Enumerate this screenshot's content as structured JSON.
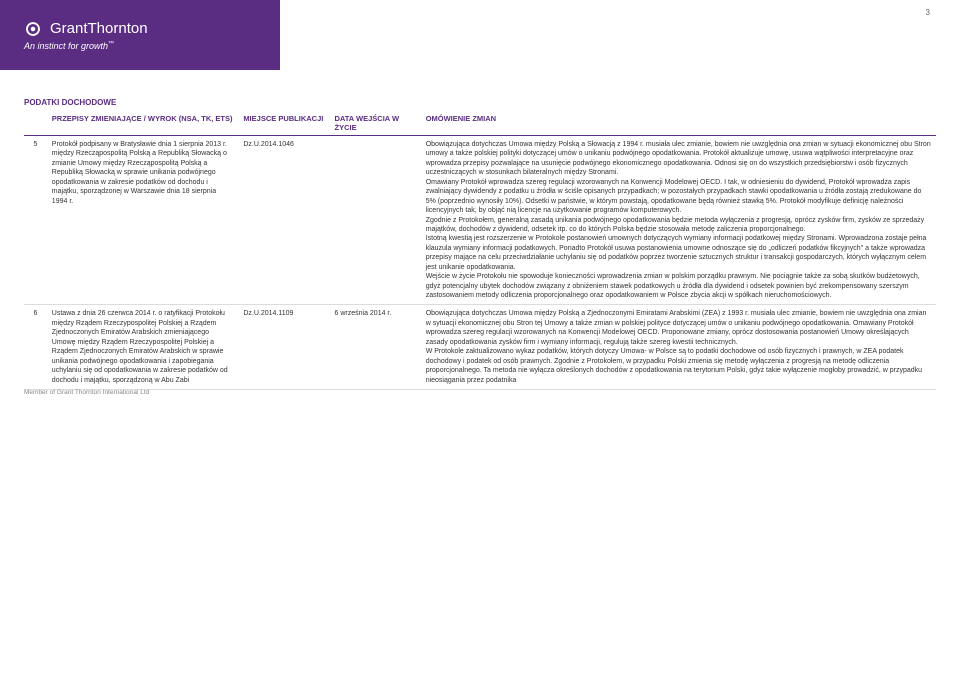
{
  "page_number": "3",
  "brand": {
    "name": "GrantThornton",
    "tagline": "An instinct for growth",
    "bg_color": "#5a2d82",
    "text_color": "#ffffff"
  },
  "section_title": "PODATKI DOCHODOWE",
  "table": {
    "headers": {
      "num": "",
      "przepisy": "PRZEPISY ZMIENIAJĄCE / WYROK (NSA, TK, ETS)",
      "miejsce": "MIEJSCE PUBLIKACJI",
      "data": "DATA WEJŚCIA W ŻYCIE",
      "omowienie": "OMÓWIENIE ZMIAN"
    },
    "rows": [
      {
        "num": "5",
        "przepisy": "Protokół podpisany w Bratysławie dnia 1 sierpnia 2013 r. między Rzecząpospolitą Polską a Republiką Słowacką o zmianie Umowy między Rzecząpospolitą Polską a Republiką Słowacką w sprawie unikania podwójnego opodatkowania w zakresie podatków od dochodu i majątku, sporządzonej w Warszawie dnia 18 sierpnia 1994 r.",
        "miejsce": "Dz.U.2014.1046",
        "data": "",
        "omowienie": "Obowiązująca dotychczas Umowa  między Polską a Słowacją  z 1994 r. musiała ulec zmianie, bowiem nie uwzględnia ona zmian w sytuacji ekonomicznej obu Stron umowy a także polskiej polityki dotyczącej umów o unikaniu podwójnego opodatkowania.  Protokół aktualizuje umowę, usuwa wątpliwości interpretacyjne oraz wprowadza przepisy pozwalające na usunięcie podwójnego ekonomicznego opodatkowania. Odnosi się on do wszystkich przedsiębiorstw i osób fizycznych uczestniczących w stosunkach bilateralnych między Stronami.\nOmawiany Protokół wprowadza szereg regulacji wzorowanych na Konwencji Modelowej OECD.  I tak, w odniesieniu do dywidend, Protokół wprowadza zapis zwalniający dywidendy z podatku u źródła w ściśle opisanych przypadkach; w pozostałych przypadkach stawki opodatkowania u źródła zostają zredukowane do 5% (poprzednio wynosiły 10%). Odsetki w państwie, w którym powstają, opodatkowane będą również stawką 5%.  Protokół  modyfikuje definicję należności licencyjnych tak, by objąć nią licencje na użytkowanie programów komputerowych.\nZgodnie z Protokołem, generalną zasadą unikania podwójnego opodatkowania będzie metoda wyłączenia z progresją, oprócz zysków firm, zysków ze sprzedaży majątków, dochodów z dywidend, odsetek itp. co do których Polska będzie stosowała metodę zaliczenia proporcjonalnego.\nIstotną kwestią jest rozszerzenie w Protokole postanowień umownych dotyczących wymiany informacji podatkowej między Stronami.  Wprowadzona zostaje pełna klauzula wymiany informacji podatkowych.  Ponadto Protokół usuwa postanowienia umowne odnoszące się do „odliczeń podatków fikcyjnych\" a także wprowadza przepisy mające na celu przeciwdziałanie uchylaniu się od podatków poprzez tworzenie sztucznych struktur i transakcji gospodarczych, których wyłącznym celem jest unikanie opodatkowania.\nWejście w życie Protokołu nie spowoduje konieczności wprowadzenia zmian w polskim porządku prawnym.  Nie pociągnie także za sobą skutków budżetowych, gdyż potencjalny ubytek dochodów związany z obniżeniem stawek podatkowych u źródła dla dywidend i odsetek powinien być zrekompensowany szerszym zastosowaniem metody odliczenia proporcjonalnego oraz opodatkowaniem w Polsce zbycia akcji w spółkach nieruchomościowych."
      },
      {
        "num": "6",
        "przepisy": "Ustawa z dnia 26 czerwca 2014 r. o ratyfikacji Protokołu między Rządem Rzeczypospolitej Polskiej a Rządem Zjednoczonych Emiratów Arabskich zmieniającego Umowę między Rządem Rzeczypospolitej Polskiej a Rządem Zjednoczonych Emiratów Arabskich w sprawie unikania podwójnego opodatkowania i zapobiegania uchylaniu się od opodatkowania w zakresie podatków od dochodu i majątku, sporządzoną w Abu Zabi",
        "miejsce": "Dz.U.2014.1109",
        "data": "6 września 2014 r.",
        "omowienie": "Obowiązująca dotychczas Umowa  między Polską a  Zjednoczonymi Emiratami Arabskimi (ZEA) z 1993 r. musiała ulec zmianie, bowiem nie uwzględnia ona zmian w sytuacji ekonomicznej obu Stron tej Umowy a także  zmian w polskiej polityce dotyczącej umów o unikaniu podwójnego opodatkowania.  Omawiany Protokół wprowadza szereg regulacji wzorowanych na Konwencji Modelowej OECD.  Proponowane zmiany, oprócz dostosowania postanowień Umowy określających zasady opodatkowania zysków firm i wymiany informacji, regulują także szereg kwestii technicznych.\nW Protokole zaktualizowano wykaz podatków, których dotyczy Umowa- w Polsce są to podatki dochodowe od osób fizycznych i prawnych, w ZEA podatek dochodowy i podatek od osób prawnych.  Zgodnie z Protokołem, w przypadku Polski zmienia się metodę wyłączenia z progresją na metodę odliczenia proporcjonalnego.  Ta metoda nie wyłącza określonych dochodów z opodatkowania na terytorium Polski, gdyż takie wyłączenie mogłoby prowadzić, w przypadku nieosiągania przez podatnika"
      }
    ]
  },
  "footer": "Member of Grant Thornton International Ltd"
}
